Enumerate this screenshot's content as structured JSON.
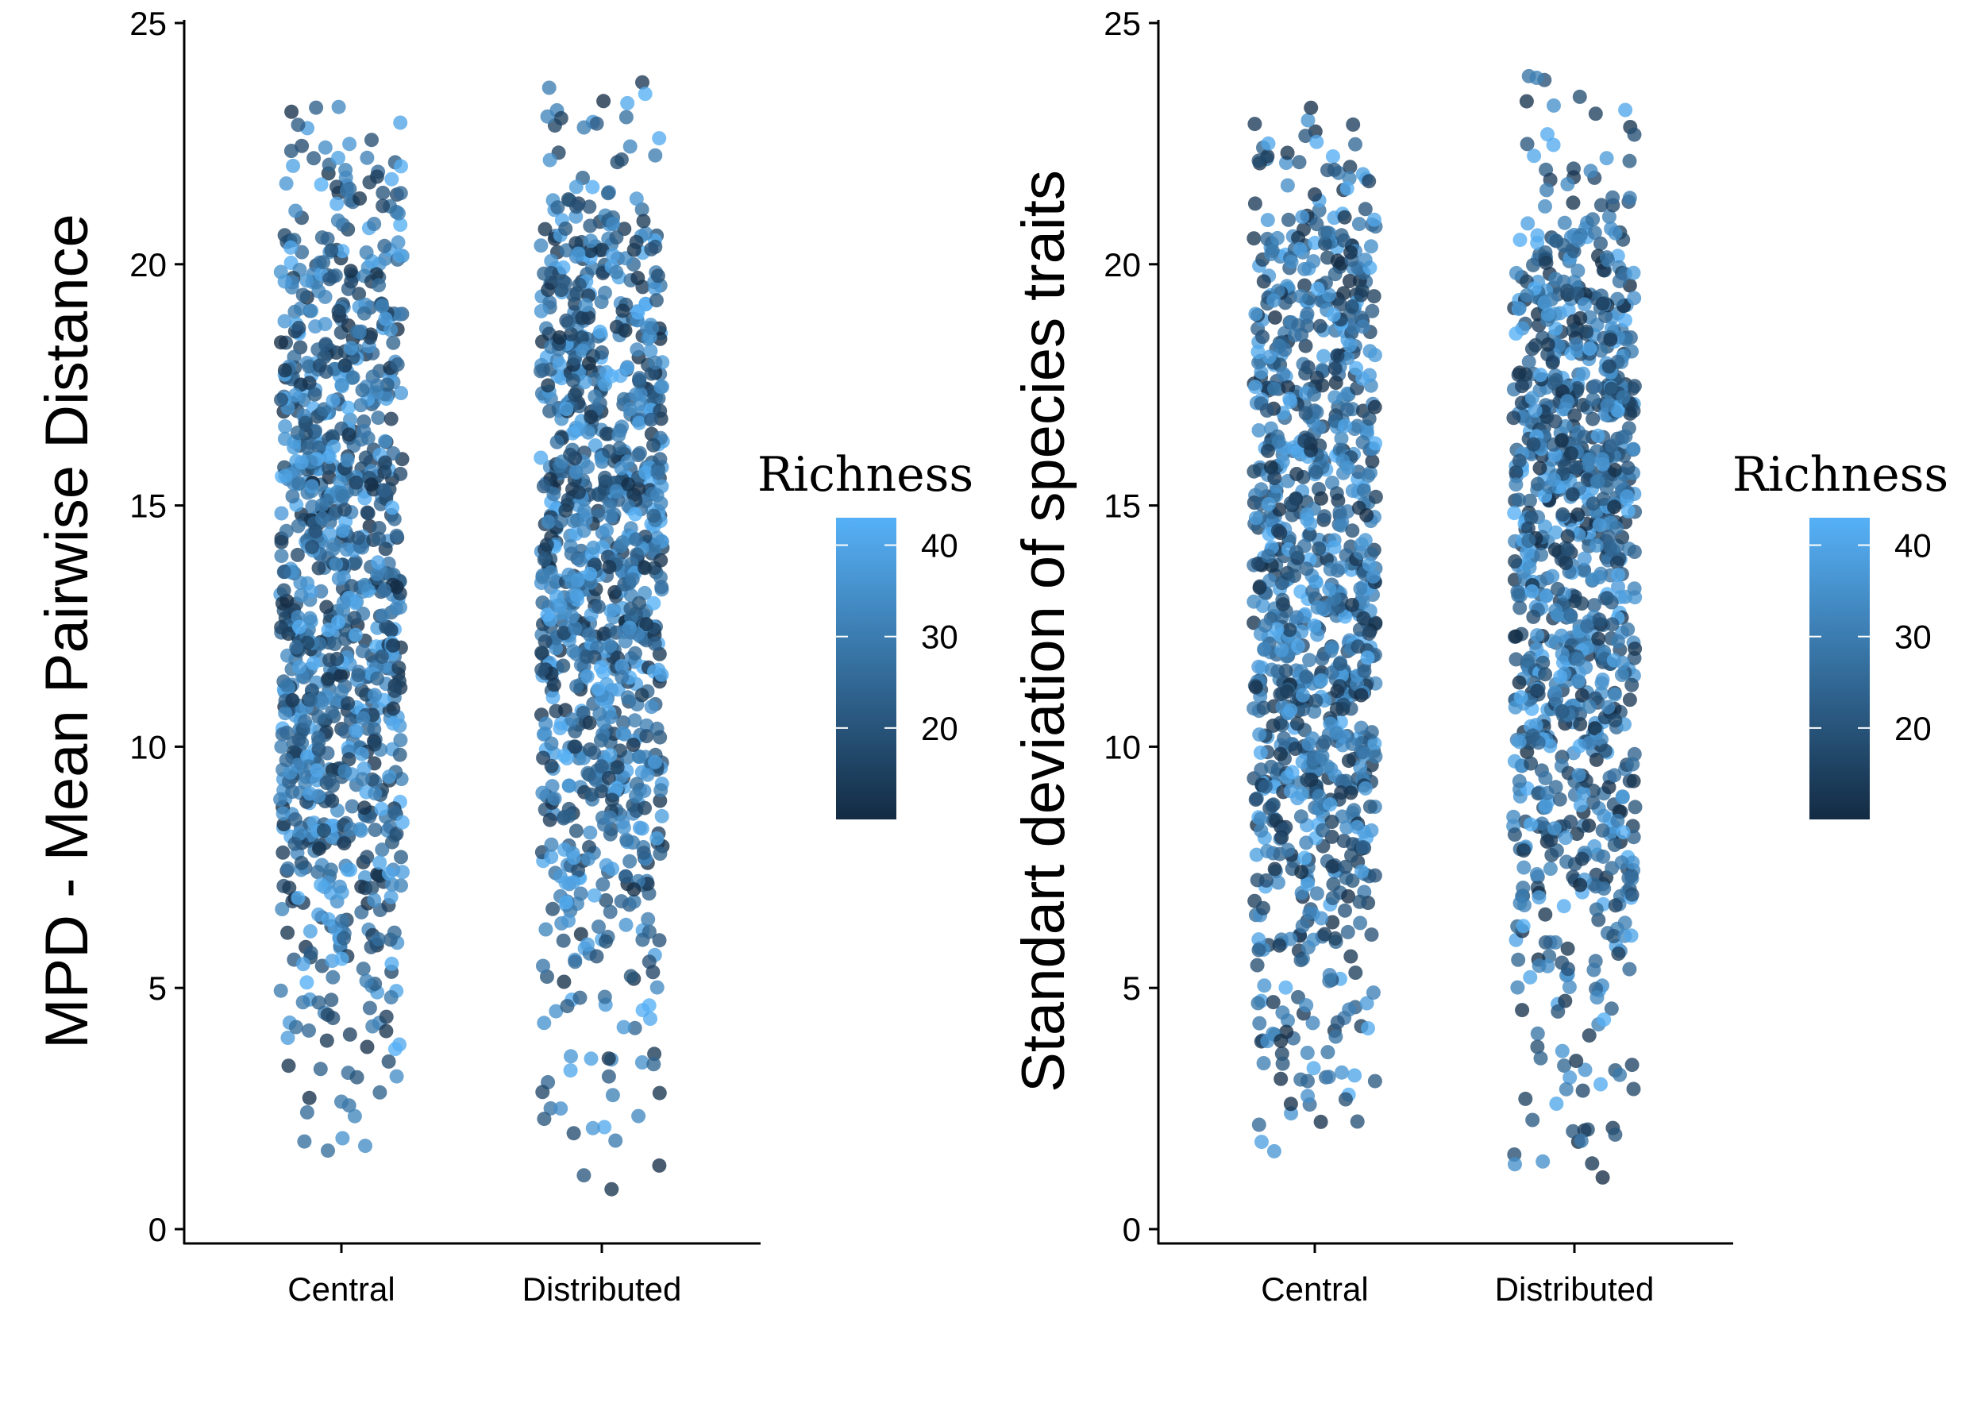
{
  "colors": {
    "low": "#132B43",
    "high": "#56B1F7",
    "axis": "#000000",
    "legend_tick": "#ffffff"
  },
  "chart_data": [
    {
      "type": "scatter",
      "xlabel": "",
      "ylabel": "MPD - Mean Pairwise Distance",
      "categories": [
        "Central",
        "Distributed"
      ],
      "ylim": [
        0,
        25
      ],
      "yticks": [
        0,
        5,
        10,
        15,
        20,
        25
      ],
      "y_tick_labels": [
        "0",
        "5",
        "10",
        "15",
        "20",
        "25"
      ],
      "jitter": "horizontal",
      "legend": {
        "title": "Richness",
        "placement": "right",
        "range": [
          10,
          43
        ],
        "ticks": [
          20,
          30,
          40
        ],
        "tick_labels": [
          "20",
          "30",
          "40"
        ]
      },
      "series": [
        {
          "category": "Central",
          "point_count": 1000,
          "y_range": [
            1.6,
            23.3
          ],
          "y_profile": [
            [
              1.5,
              0.15
            ],
            [
              3,
              0.5
            ],
            [
              5,
              0.7
            ],
            [
              7,
              1.2
            ],
            [
              9,
              2.2
            ],
            [
              11,
              2.6
            ],
            [
              13,
              2.4
            ],
            [
              15,
              2.1
            ],
            [
              18,
              1.9
            ],
            [
              20.5,
              1.5
            ],
            [
              21.5,
              0.6
            ],
            [
              23.3,
              0.15
            ]
          ],
          "color_profile": "mixed"
        },
        {
          "category": "Distributed",
          "point_count": 1000,
          "y_range": [
            0.8,
            24.1
          ],
          "y_profile": [
            [
              0.8,
              0.12
            ],
            [
              3,
              0.3
            ],
            [
              5,
              0.45
            ],
            [
              7,
              1.1
            ],
            [
              9,
              1.8
            ],
            [
              11,
              2.2
            ],
            [
              14,
              2.6
            ],
            [
              16,
              2.6
            ],
            [
              18.5,
              2.2
            ],
            [
              20.5,
              1.6
            ],
            [
              21.5,
              0.5
            ],
            [
              24.1,
              0.12
            ]
          ],
          "color_profile": "mixed"
        }
      ]
    },
    {
      "type": "scatter",
      "xlabel": "",
      "ylabel": "Standart deviation of species traits",
      "categories": [
        "Central",
        "Distributed"
      ],
      "ylim": [
        0,
        25
      ],
      "yticks": [
        0,
        5,
        10,
        15,
        20,
        25
      ],
      "y_tick_labels": [
        "0",
        "5",
        "10",
        "15",
        "20",
        "25"
      ],
      "jitter": "horizontal",
      "legend": {
        "title": "Richness",
        "placement": "right",
        "range": [
          10,
          43
        ],
        "ticks": [
          20,
          30,
          40
        ],
        "tick_labels": [
          "20",
          "30",
          "40"
        ]
      },
      "series": [
        {
          "category": "Central",
          "point_count": 1000,
          "y_range": [
            1.6,
            23.3
          ],
          "y_profile": [
            [
              1.5,
              0.15
            ],
            [
              3,
              0.55
            ],
            [
              5,
              0.75
            ],
            [
              7,
              1.3
            ],
            [
              9,
              2.2
            ],
            [
              11,
              2.6
            ],
            [
              13,
              2.4
            ],
            [
              15,
              2.1
            ],
            [
              18,
              1.9
            ],
            [
              20.5,
              1.5
            ],
            [
              21.5,
              0.6
            ],
            [
              23.3,
              0.15
            ]
          ],
          "color_profile": "mixed"
        },
        {
          "category": "Distributed",
          "point_count": 1000,
          "y_range": [
            0.8,
            24.1
          ],
          "y_profile": [
            [
              0.8,
              0.12
            ],
            [
              3,
              0.3
            ],
            [
              5,
              0.45
            ],
            [
              7,
              1.1
            ],
            [
              9,
              1.8
            ],
            [
              11,
              2.2
            ],
            [
              14,
              2.6
            ],
            [
              16,
              2.6
            ],
            [
              18.5,
              2.2
            ],
            [
              20.5,
              1.6
            ],
            [
              21.5,
              0.5
            ],
            [
              24.1,
              0.12
            ]
          ],
          "color_profile": "mixed"
        }
      ]
    }
  ]
}
